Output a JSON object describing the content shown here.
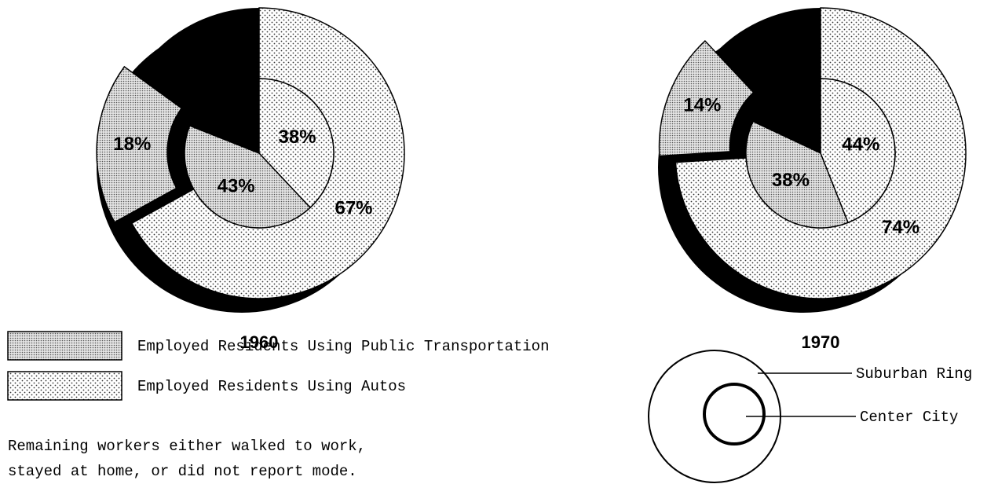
{
  "chart_data": [
    {
      "type": "pie",
      "title": "1960",
      "series": [
        {
          "ring": "inner",
          "values": [
            43,
            38
          ],
          "value_labels": [
            "43%",
            "38%"
          ]
        },
        {
          "ring": "outer",
          "values": [
            18,
            67
          ],
          "value_labels": [
            "18%",
            "67%"
          ]
        }
      ]
    },
    {
      "type": "pie",
      "title": "1970",
      "series": [
        {
          "ring": "inner",
          "values": [
            38,
            44
          ],
          "value_labels": [
            "38%",
            "44%"
          ]
        },
        {
          "ring": "outer",
          "values": [
            14,
            74
          ],
          "value_labels": [
            "14%",
            "74%"
          ]
        }
      ]
    }
  ],
  "legend": {
    "items": [
      {
        "label": "Employed Residents Using Public Transportation",
        "pattern": "dense"
      },
      {
        "label": "Employed Residents Using Autos",
        "pattern": "sparse"
      }
    ],
    "note": [
      "Remaining workers either walked to work,",
      "stayed at home, or did not report mode."
    ]
  },
  "key": {
    "outer": "Suburban Ring",
    "inner": "Center City"
  }
}
